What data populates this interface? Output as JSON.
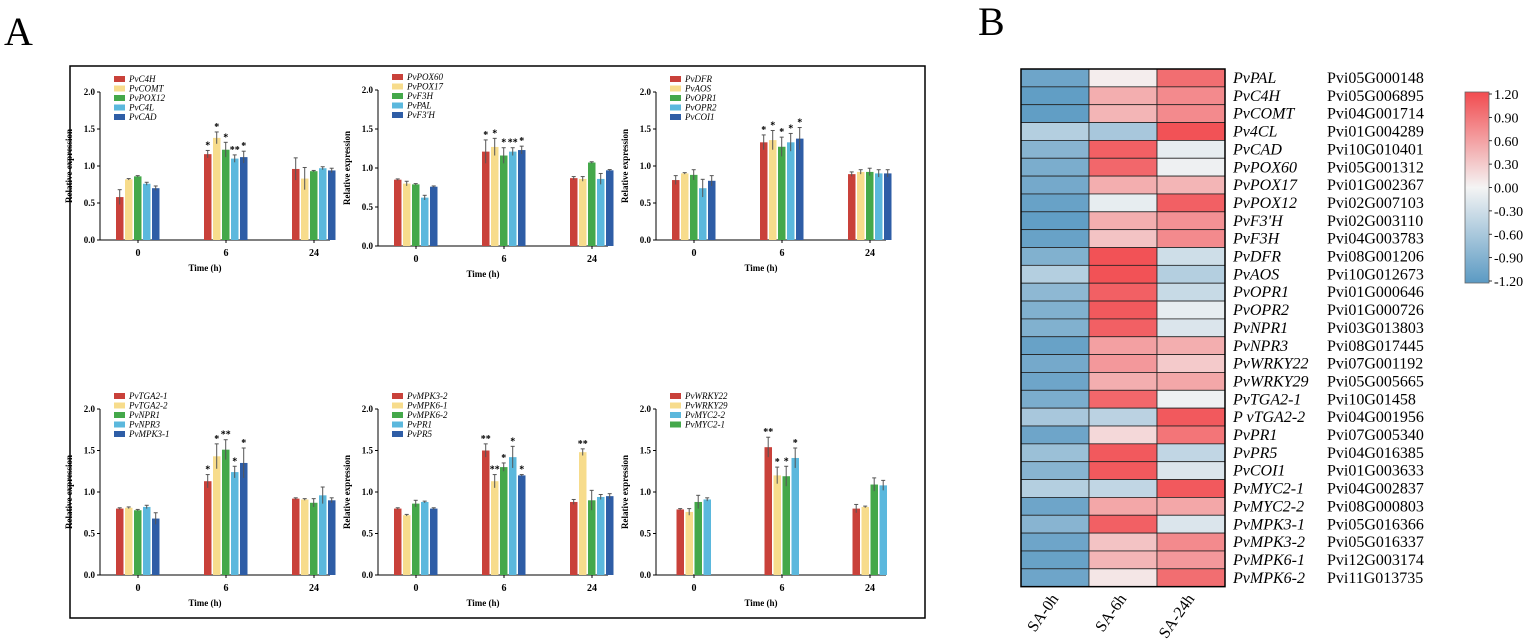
{
  "panel_labels": {
    "a": "A",
    "b": "B"
  },
  "colors": {
    "red": "#c9413a",
    "yellow": "#f7dc8c",
    "green": "#44a84a",
    "cyan": "#5bb8dd",
    "blue": "#2e5da6",
    "heat_low": "#5b9ac3",
    "heat_mid": "#f4f4f4",
    "heat_high": "#f24b4f"
  },
  "chart_data": [
    {
      "type": "bar",
      "panel": "A",
      "title": "",
      "xlabel": "Time (h)",
      "ylabel": "Relative expression",
      "ylim": [
        0,
        2.0
      ],
      "yticks": [
        "0.0",
        "0.5",
        "1.0",
        "1.5",
        "2.0"
      ],
      "categories": [
        "0",
        "6",
        "24"
      ],
      "series": [
        {
          "name": "PvC4H",
          "color": "red",
          "values": [
            0.58,
            1.16,
            0.96
          ],
          "errors": [
            0.1,
            0.05,
            0.15
          ],
          "marks": [
            "",
            "*",
            ""
          ]
        },
        {
          "name": "PvCOMT",
          "color": "yellow",
          "values": [
            0.82,
            1.38,
            0.83
          ],
          "errors": [
            0.01,
            0.08,
            0.15
          ],
          "marks": [
            "",
            "*",
            ""
          ]
        },
        {
          "name": "PvPOX12",
          "color": "green",
          "values": [
            0.86,
            1.22,
            0.93
          ],
          "errors": [
            0.01,
            0.1,
            0.01
          ],
          "marks": [
            "",
            "*",
            ""
          ]
        },
        {
          "name": "PvC4L",
          "color": "cyan",
          "values": [
            0.76,
            1.1,
            0.97
          ],
          "errors": [
            0.02,
            0.05,
            0.02
          ],
          "marks": [
            "",
            "**",
            ""
          ]
        },
        {
          "name": "PvCAD",
          "color": "blue",
          "values": [
            0.7,
            1.12,
            0.94
          ],
          "errors": [
            0.03,
            0.08,
            0.03
          ],
          "marks": [
            "",
            "*",
            ""
          ]
        }
      ]
    },
    {
      "type": "bar",
      "panel": "A",
      "title": "",
      "xlabel": "Time (h)",
      "ylabel": "Relative expression",
      "ylim": [
        0,
        2.0
      ],
      "yticks": [
        "0.0",
        "0.5",
        "1.0",
        "1.5",
        "2.0"
      ],
      "categories": [
        "0",
        "6",
        "24"
      ],
      "series": [
        {
          "name": "PvPOX60",
          "color": "red",
          "values": [
            0.85,
            1.21,
            0.87
          ],
          "errors": [
            0.01,
            0.15,
            0.02
          ],
          "marks": [
            "",
            "*",
            ""
          ]
        },
        {
          "name": "PvPOX17",
          "color": "yellow",
          "values": [
            0.8,
            1.27,
            0.86
          ],
          "errors": [
            0.03,
            0.11,
            0.03
          ],
          "marks": [
            "",
            "*",
            ""
          ]
        },
        {
          "name": "PvF3H",
          "color": "green",
          "values": [
            0.79,
            1.16,
            1.07
          ],
          "errors": [
            0.01,
            0.1,
            0.01
          ],
          "marks": [
            "",
            "*",
            ""
          ]
        },
        {
          "name": "PvPAL",
          "color": "cyan",
          "values": [
            0.62,
            1.21,
            0.86
          ],
          "errors": [
            0.03,
            0.05,
            0.07
          ],
          "marks": [
            "",
            "**",
            ""
          ]
        },
        {
          "name": "PvF3'H",
          "color": "blue",
          "values": [
            0.76,
            1.23,
            0.97
          ],
          "errors": [
            0.01,
            0.05,
            0.01
          ],
          "marks": [
            "",
            "*",
            ""
          ]
        }
      ]
    },
    {
      "type": "bar",
      "panel": "A",
      "title": "",
      "xlabel": "Time (h)",
      "ylabel": "Relative expression",
      "ylim": [
        0,
        2.0
      ],
      "yticks": [
        "0.0",
        "0.5",
        "1.0",
        "1.5",
        "2.0"
      ],
      "categories": [
        "0",
        "6",
        "24"
      ],
      "series": [
        {
          "name": "PvDFR",
          "color": "red",
          "values": [
            0.81,
            1.32,
            0.89
          ],
          "errors": [
            0.06,
            0.1,
            0.03
          ],
          "marks": [
            "",
            "*",
            ""
          ]
        },
        {
          "name": "PvAOS",
          "color": "yellow",
          "values": [
            0.9,
            1.35,
            0.92
          ],
          "errors": [
            0.01,
            0.13,
            0.03
          ],
          "marks": [
            "",
            "*",
            ""
          ]
        },
        {
          "name": "PvOPR1",
          "color": "green",
          "values": [
            0.88,
            1.26,
            0.92
          ],
          "errors": [
            0.07,
            0.13,
            0.05
          ],
          "marks": [
            "",
            "*",
            ""
          ]
        },
        {
          "name": "PvOPR2",
          "color": "cyan",
          "values": [
            0.7,
            1.32,
            0.9
          ],
          "errors": [
            0.12,
            0.12,
            0.05
          ],
          "marks": [
            "",
            "*",
            ""
          ]
        },
        {
          "name": "PvCOI1",
          "color": "blue",
          "values": [
            0.8,
            1.37,
            0.9
          ],
          "errors": [
            0.07,
            0.15,
            0.05
          ],
          "marks": [
            "",
            "*",
            ""
          ]
        }
      ]
    },
    {
      "type": "bar",
      "panel": "A",
      "title": "",
      "xlabel": "Time (h)",
      "ylabel": "Relative expression",
      "ylim": [
        0,
        2.0
      ],
      "yticks": [
        "0.0",
        "0.5",
        "1.0",
        "1.5",
        "2.0"
      ],
      "categories": [
        "0",
        "6",
        "24"
      ],
      "series": [
        {
          "name": "PvTGA2-1",
          "color": "red",
          "values": [
            0.8,
            1.13,
            0.92
          ],
          "errors": [
            0.01,
            0.08,
            0.01
          ],
          "marks": [
            "",
            "*",
            ""
          ]
        },
        {
          "name": "PvTGA2-2",
          "color": "yellow",
          "values": [
            0.81,
            1.43,
            0.91
          ],
          "errors": [
            0.01,
            0.15,
            0.01
          ],
          "marks": [
            "",
            "*",
            ""
          ]
        },
        {
          "name": "PvNPR1",
          "color": "green",
          "values": [
            0.78,
            1.51,
            0.87
          ],
          "errors": [
            0.01,
            0.12,
            0.05
          ],
          "marks": [
            "",
            "**",
            ""
          ]
        },
        {
          "name": "PvNPR3",
          "color": "cyan",
          "values": [
            0.82,
            1.24,
            0.96
          ],
          "errors": [
            0.02,
            0.07,
            0.1
          ],
          "marks": [
            "",
            "*",
            ""
          ]
        },
        {
          "name": "PvMPK3-1",
          "color": "blue",
          "values": [
            0.68,
            1.35,
            0.9
          ],
          "errors": [
            0.07,
            0.18,
            0.03
          ],
          "marks": [
            "",
            "*",
            ""
          ]
        }
      ]
    },
    {
      "type": "bar",
      "panel": "A",
      "title": "",
      "xlabel": "Time (h)",
      "ylabel": "Relative expression",
      "ylim": [
        0,
        2.0
      ],
      "yticks": [
        "0.0",
        "0.5",
        "1.0",
        "1.5",
        "2.0"
      ],
      "categories": [
        "0",
        "6",
        "24"
      ],
      "series": [
        {
          "name": "PvMPK3-2",
          "color": "red",
          "values": [
            0.8,
            1.5,
            0.88
          ],
          "errors": [
            0.01,
            0.08,
            0.03
          ],
          "marks": [
            "",
            "**",
            ""
          ]
        },
        {
          "name": "PvMPK6-1",
          "color": "yellow",
          "values": [
            0.72,
            1.13,
            1.48
          ],
          "errors": [
            0.01,
            0.08,
            0.04
          ],
          "marks": [
            "",
            "**",
            "**"
          ]
        },
        {
          "name": "PvMPK6-2",
          "color": "green",
          "values": [
            0.86,
            1.3,
            0.9
          ],
          "errors": [
            0.04,
            0.05,
            0.12
          ],
          "marks": [
            "",
            "*",
            ""
          ]
        },
        {
          "name": "PvPR1",
          "color": "cyan",
          "values": [
            0.88,
            1.42,
            0.94
          ],
          "errors": [
            0.01,
            0.13,
            0.03
          ],
          "marks": [
            "",
            "*",
            ""
          ]
        },
        {
          "name": "PvPR5",
          "color": "blue",
          "values": [
            0.8,
            1.2,
            0.95
          ],
          "errors": [
            0.01,
            0.01,
            0.03
          ],
          "marks": [
            "",
            "*",
            ""
          ]
        }
      ]
    },
    {
      "type": "bar",
      "panel": "A",
      "title": "",
      "xlabel": "Time (h)",
      "ylabel": "Relative expression",
      "ylim": [
        0,
        2.0
      ],
      "yticks": [
        "0.0",
        "0.5",
        "1.0",
        "1.5",
        "2.0"
      ],
      "categories": [
        "0",
        "6",
        "24"
      ],
      "series": [
        {
          "name": "PvWRKY22",
          "color": "red",
          "values": [
            0.79,
            1.54,
            0.8
          ],
          "errors": [
            0.01,
            0.12,
            0.05
          ],
          "marks": [
            "",
            "**",
            ""
          ]
        },
        {
          "name": "PvWRKY29",
          "color": "yellow",
          "values": [
            0.76,
            1.2,
            0.82
          ],
          "errors": [
            0.04,
            0.1,
            0.01
          ],
          "marks": [
            "",
            "*",
            ""
          ]
        },
        {
          "name": "PvMYC2-2",
          "color": "cyan",
          "values": [
            0.91,
            1.41,
            1.08
          ],
          "errors": [
            0.02,
            0.12,
            0.06
          ],
          "marks": [
            "",
            "*",
            ""
          ]
        },
        {
          "name": "PvMYC2-1",
          "color": "green",
          "values": [
            0.88,
            1.19,
            1.09
          ],
          "errors": [
            0.08,
            0.12,
            0.08
          ],
          "marks": [
            "",
            "*",
            ""
          ]
        }
      ],
      "draw_order": [
        0,
        1,
        3,
        2
      ]
    },
    {
      "type": "heatmap",
      "panel": "B",
      "columns": [
        "SA-0h",
        "SA-6h",
        "SA-24h"
      ],
      "colorbar": {
        "min": -1.2,
        "max": 1.2,
        "ticks": [
          "1.20",
          "0.90",
          "0.60",
          "0.30",
          "0.00",
          "-0.30",
          "-0.60",
          "-0.90",
          "-1.20"
        ]
      },
      "rows": [
        {
          "gene": "PvPAL",
          "id": "Pvi05G000148",
          "values": [
            -1.05,
            0.05,
            0.95
          ]
        },
        {
          "gene": "PvC4H",
          "id": "Pvi05G006895",
          "values": [
            -1.15,
            0.5,
            0.75
          ]
        },
        {
          "gene": "PvCOMT",
          "id": "Pvi04G001714",
          "values": [
            -1.15,
            0.45,
            0.75
          ]
        },
        {
          "gene": "Pv4CL",
          "id": "Pvi01G004289",
          "values": [
            -0.5,
            -0.6,
            1.15
          ]
        },
        {
          "gene": "PvCAD",
          "id": "Pvi10G010401",
          "values": [
            -0.85,
            1.05,
            -0.1
          ]
        },
        {
          "gene": "PvPOX60",
          "id": "Pvi05G001312",
          "values": [
            -0.95,
            1.0,
            -0.05
          ]
        },
        {
          "gene": "PvPOX17",
          "id": "Pvi01G002367",
          "values": [
            -1.0,
            0.5,
            0.45
          ]
        },
        {
          "gene": "PvPOX12",
          "id": "Pvi02G007103",
          "values": [
            -1.1,
            -0.1,
            1.05
          ]
        },
        {
          "gene": "PvF3'H",
          "id": "Pvi02G003110",
          "values": [
            -1.15,
            0.5,
            0.7
          ]
        },
        {
          "gene": "PvF3H",
          "id": "Pvi04G003783",
          "values": [
            -1.1,
            0.35,
            0.75
          ]
        },
        {
          "gene": "PvDFR",
          "id": "Pvi08G001206",
          "values": [
            -0.9,
            1.15,
            -0.3
          ]
        },
        {
          "gene": "PvAOS",
          "id": "Pvi10G012673",
          "values": [
            -0.5,
            1.15,
            -0.5
          ]
        },
        {
          "gene": "PvOPR1",
          "id": "Pvi01G000646",
          "values": [
            -0.8,
            1.05,
            -0.35
          ]
        },
        {
          "gene": "PvOPR2",
          "id": "Pvi01G000726",
          "values": [
            -0.9,
            1.1,
            -0.1
          ]
        },
        {
          "gene": "PvNPR1",
          "id": "Pvi03G013803",
          "values": [
            -0.9,
            1.05,
            -0.2
          ]
        },
        {
          "gene": "PvNPR3",
          "id": "Pvi08G017445",
          "values": [
            -1.1,
            0.6,
            0.5
          ]
        },
        {
          "gene": "PvWRKY22",
          "id": "Pvi07G001192",
          "values": [
            -1.0,
            0.65,
            0.3
          ]
        },
        {
          "gene": "PvWRKY29",
          "id": "Pvi05G005665",
          "values": [
            -1.05,
            0.5,
            0.55
          ]
        },
        {
          "gene": "PvTGA2-1",
          "id": "Pvi10G01458",
          "values": [
            -0.95,
            1.0,
            -0.05
          ]
        },
        {
          "gene": "P vTGA2-2",
          "id": "Pvi04G001956",
          "values": [
            -0.6,
            -0.45,
            1.1
          ]
        },
        {
          "gene": "PvPR1",
          "id": "Pvi07G005340",
          "values": [
            -1.05,
            0.2,
            0.9
          ]
        },
        {
          "gene": "PvPR5",
          "id": "Pvi04G016385",
          "values": [
            -0.7,
            1.1,
            -0.4
          ]
        },
        {
          "gene": "PvCOI1",
          "id": "Pvi01G003633",
          "values": [
            -0.85,
            1.1,
            -0.2
          ]
        },
        {
          "gene": "PvMYC2-1",
          "id": "Pvi04G002837",
          "values": [
            -0.5,
            -0.4,
            1.1
          ]
        },
        {
          "gene": "PvMYC2-2",
          "id": "Pvi08G000803",
          "values": [
            -1.05,
            0.55,
            0.55
          ]
        },
        {
          "gene": "PvMPK3-1",
          "id": "Pvi05G016366",
          "values": [
            -0.85,
            1.05,
            -0.2
          ]
        },
        {
          "gene": "PvMPK3-2",
          "id": "Pvi05G016337",
          "values": [
            -1.05,
            0.35,
            0.75
          ]
        },
        {
          "gene": "PvMPK6-1",
          "id": "Pvi12G003174",
          "values": [
            -1.1,
            0.45,
            0.65
          ]
        },
        {
          "gene": "PvMPK6-2",
          "id": "Pvi11G013735",
          "values": [
            -1.05,
            0.1,
            0.95
          ]
        }
      ]
    }
  ]
}
